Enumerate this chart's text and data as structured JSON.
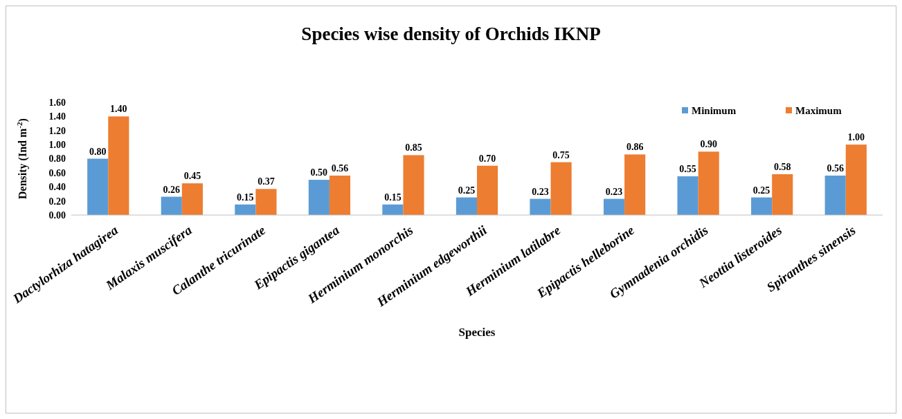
{
  "chart_data": {
    "type": "bar",
    "title": "Species wise density of Orchids IKNP",
    "xlabel": "Species",
    "ylabel": "Density (Ind m$^{-2}$)",
    "categories": [
      "Dactylorhiza hatagirea",
      "Malaxis muscifera",
      "Calanthe tricurinate",
      "Epipactis gigantea",
      "Herminium monorchis",
      "Herminium edgeworthii",
      "Herminium latilabre",
      "Epipactis helleborine",
      "Gymnadenia orchidis",
      "Neottia listeroides",
      "Spiranthes sinensis"
    ],
    "series": [
      {
        "name": "Minimum",
        "color": "#5b9bd5",
        "values": [
          0.8,
          0.26,
          0.15,
          0.5,
          0.15,
          0.25,
          0.23,
          0.23,
          0.55,
          0.25,
          0.56
        ],
        "value_labels": [
          "0.80",
          "0.26",
          "0.15",
          "0.50",
          "0.15",
          "0.25",
          "0.23",
          "0.23",
          "0.55",
          "0.25",
          "0.56"
        ]
      },
      {
        "name": "Maximum",
        "color": "#ed7d31",
        "values": [
          1.4,
          0.45,
          0.37,
          0.56,
          0.85,
          0.7,
          0.75,
          0.86,
          0.9,
          0.58,
          1.0
        ],
        "value_labels": [
          "1.40",
          "0.45",
          "0.37",
          "0.56",
          "0.85",
          "0.70",
          "0.75",
          "0.86",
          "0.90",
          "0.58",
          "1.00"
        ]
      }
    ],
    "ylim": [
      0,
      1.6
    ],
    "yticks": [
      {
        "value": 0,
        "label": "0.00"
      },
      {
        "value": 0.2,
        "label": "0.20"
      },
      {
        "value": 0.4,
        "label": "0.40"
      },
      {
        "value": 0.6,
        "label": "0.60"
      },
      {
        "value": 0.8,
        "label": "0.80"
      },
      {
        "value": 1.0,
        "label": "1.00"
      },
      {
        "value": 1.2,
        "label": "1.20"
      },
      {
        "value": 1.4,
        "label": "1.40"
      },
      {
        "value": 1.6,
        "label": "1.60"
      }
    ],
    "grid": false,
    "legend": "top right"
  }
}
